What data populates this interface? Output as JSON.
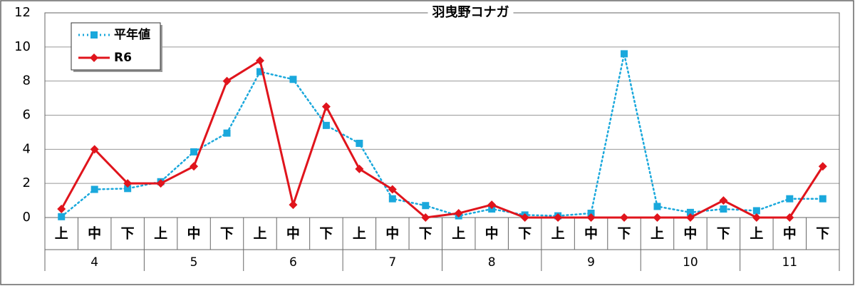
{
  "chart_data": {
    "type": "line",
    "title": "羽曳野コナガ",
    "categories": [
      "上",
      "中",
      "下",
      "上",
      "中",
      "下",
      "上",
      "中",
      "下",
      "上",
      "中",
      "下",
      "上",
      "中",
      "下",
      "上",
      "中",
      "下",
      "上",
      "中",
      "下",
      "上",
      "中",
      "下"
    ],
    "group_labels": [
      "4",
      "5",
      "6",
      "7",
      "8",
      "9",
      "10",
      "11"
    ],
    "series": [
      {
        "name": "平年値",
        "color": "#1aa8dc",
        "line_style": "dotted",
        "marker": "square",
        "values": [
          0.05,
          1.65,
          1.7,
          2.1,
          3.85,
          4.95,
          8.55,
          8.1,
          5.4,
          4.35,
          1.1,
          0.7,
          0.1,
          0.5,
          0.15,
          0.1,
          0.25,
          9.6,
          0.65,
          0.3,
          0.5,
          0.4,
          1.1,
          1.1
        ]
      },
      {
        "name": "R6",
        "color": "#e0141c",
        "line_style": "solid",
        "marker": "diamond",
        "values": [
          0.5,
          4,
          2,
          2,
          3,
          8,
          9.2,
          0.75,
          6.5,
          2.85,
          1.65,
          0,
          0.25,
          0.75,
          0,
          0,
          0,
          0,
          0,
          0,
          1,
          0,
          0,
          3
        ]
      }
    ],
    "ylim": [
      0,
      12
    ],
    "yticks": [
      0,
      2,
      4,
      6,
      8,
      10,
      12
    ],
    "grid": true,
    "legend": "upper left"
  }
}
